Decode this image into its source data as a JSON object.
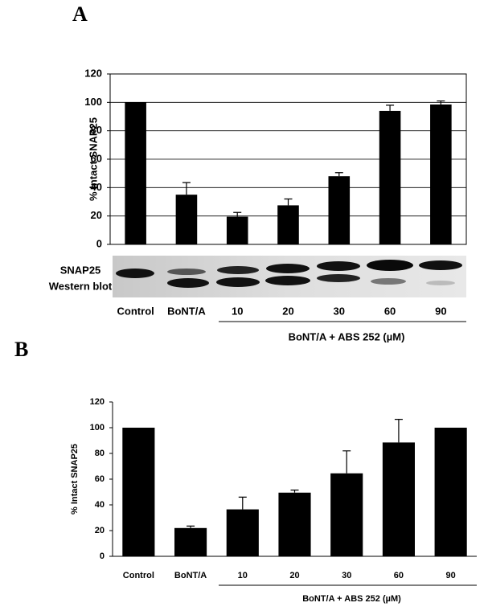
{
  "chart_data": [
    {
      "type": "bar",
      "panel_label": "A",
      "y_label": "% Intact SNAP25",
      "categories": [
        "Control",
        "BoNT/A",
        "10",
        "20",
        "30",
        "60",
        "90"
      ],
      "values": [
        100,
        35,
        19.5,
        27.5,
        48,
        94,
        98.5
      ],
      "errors": [
        null,
        8.5,
        3,
        4.5,
        2.5,
        4,
        2.5
      ],
      "color": "#000000",
      "ylim": [
        0,
        120
      ],
      "yticks": [
        0,
        20,
        40,
        60,
        80,
        100,
        120
      ],
      "grid": true,
      "blot_labels": [
        "SNAP25",
        "Western blot"
      ],
      "group_label": "BoNT/A + ABS 252 (µM)"
    },
    {
      "type": "bar",
      "panel_label": "B",
      "y_label": "% Intact SNAP25",
      "categories": [
        "Control",
        "BoNT/A",
        "10",
        "20",
        "30",
        "60",
        "90"
      ],
      "values": [
        100,
        22,
        36.5,
        49.5,
        64.5,
        88.5,
        100
      ],
      "errors": [
        null,
        1.5,
        9.5,
        2,
        17.5,
        18,
        null
      ],
      "color": "#000000",
      "ylim": [
        0,
        120
      ],
      "yticks": [
        0,
        20,
        40,
        60,
        80,
        100,
        120
      ],
      "grid": false,
      "group_label": "BoNT/A + ABS 252 (µM)"
    }
  ]
}
